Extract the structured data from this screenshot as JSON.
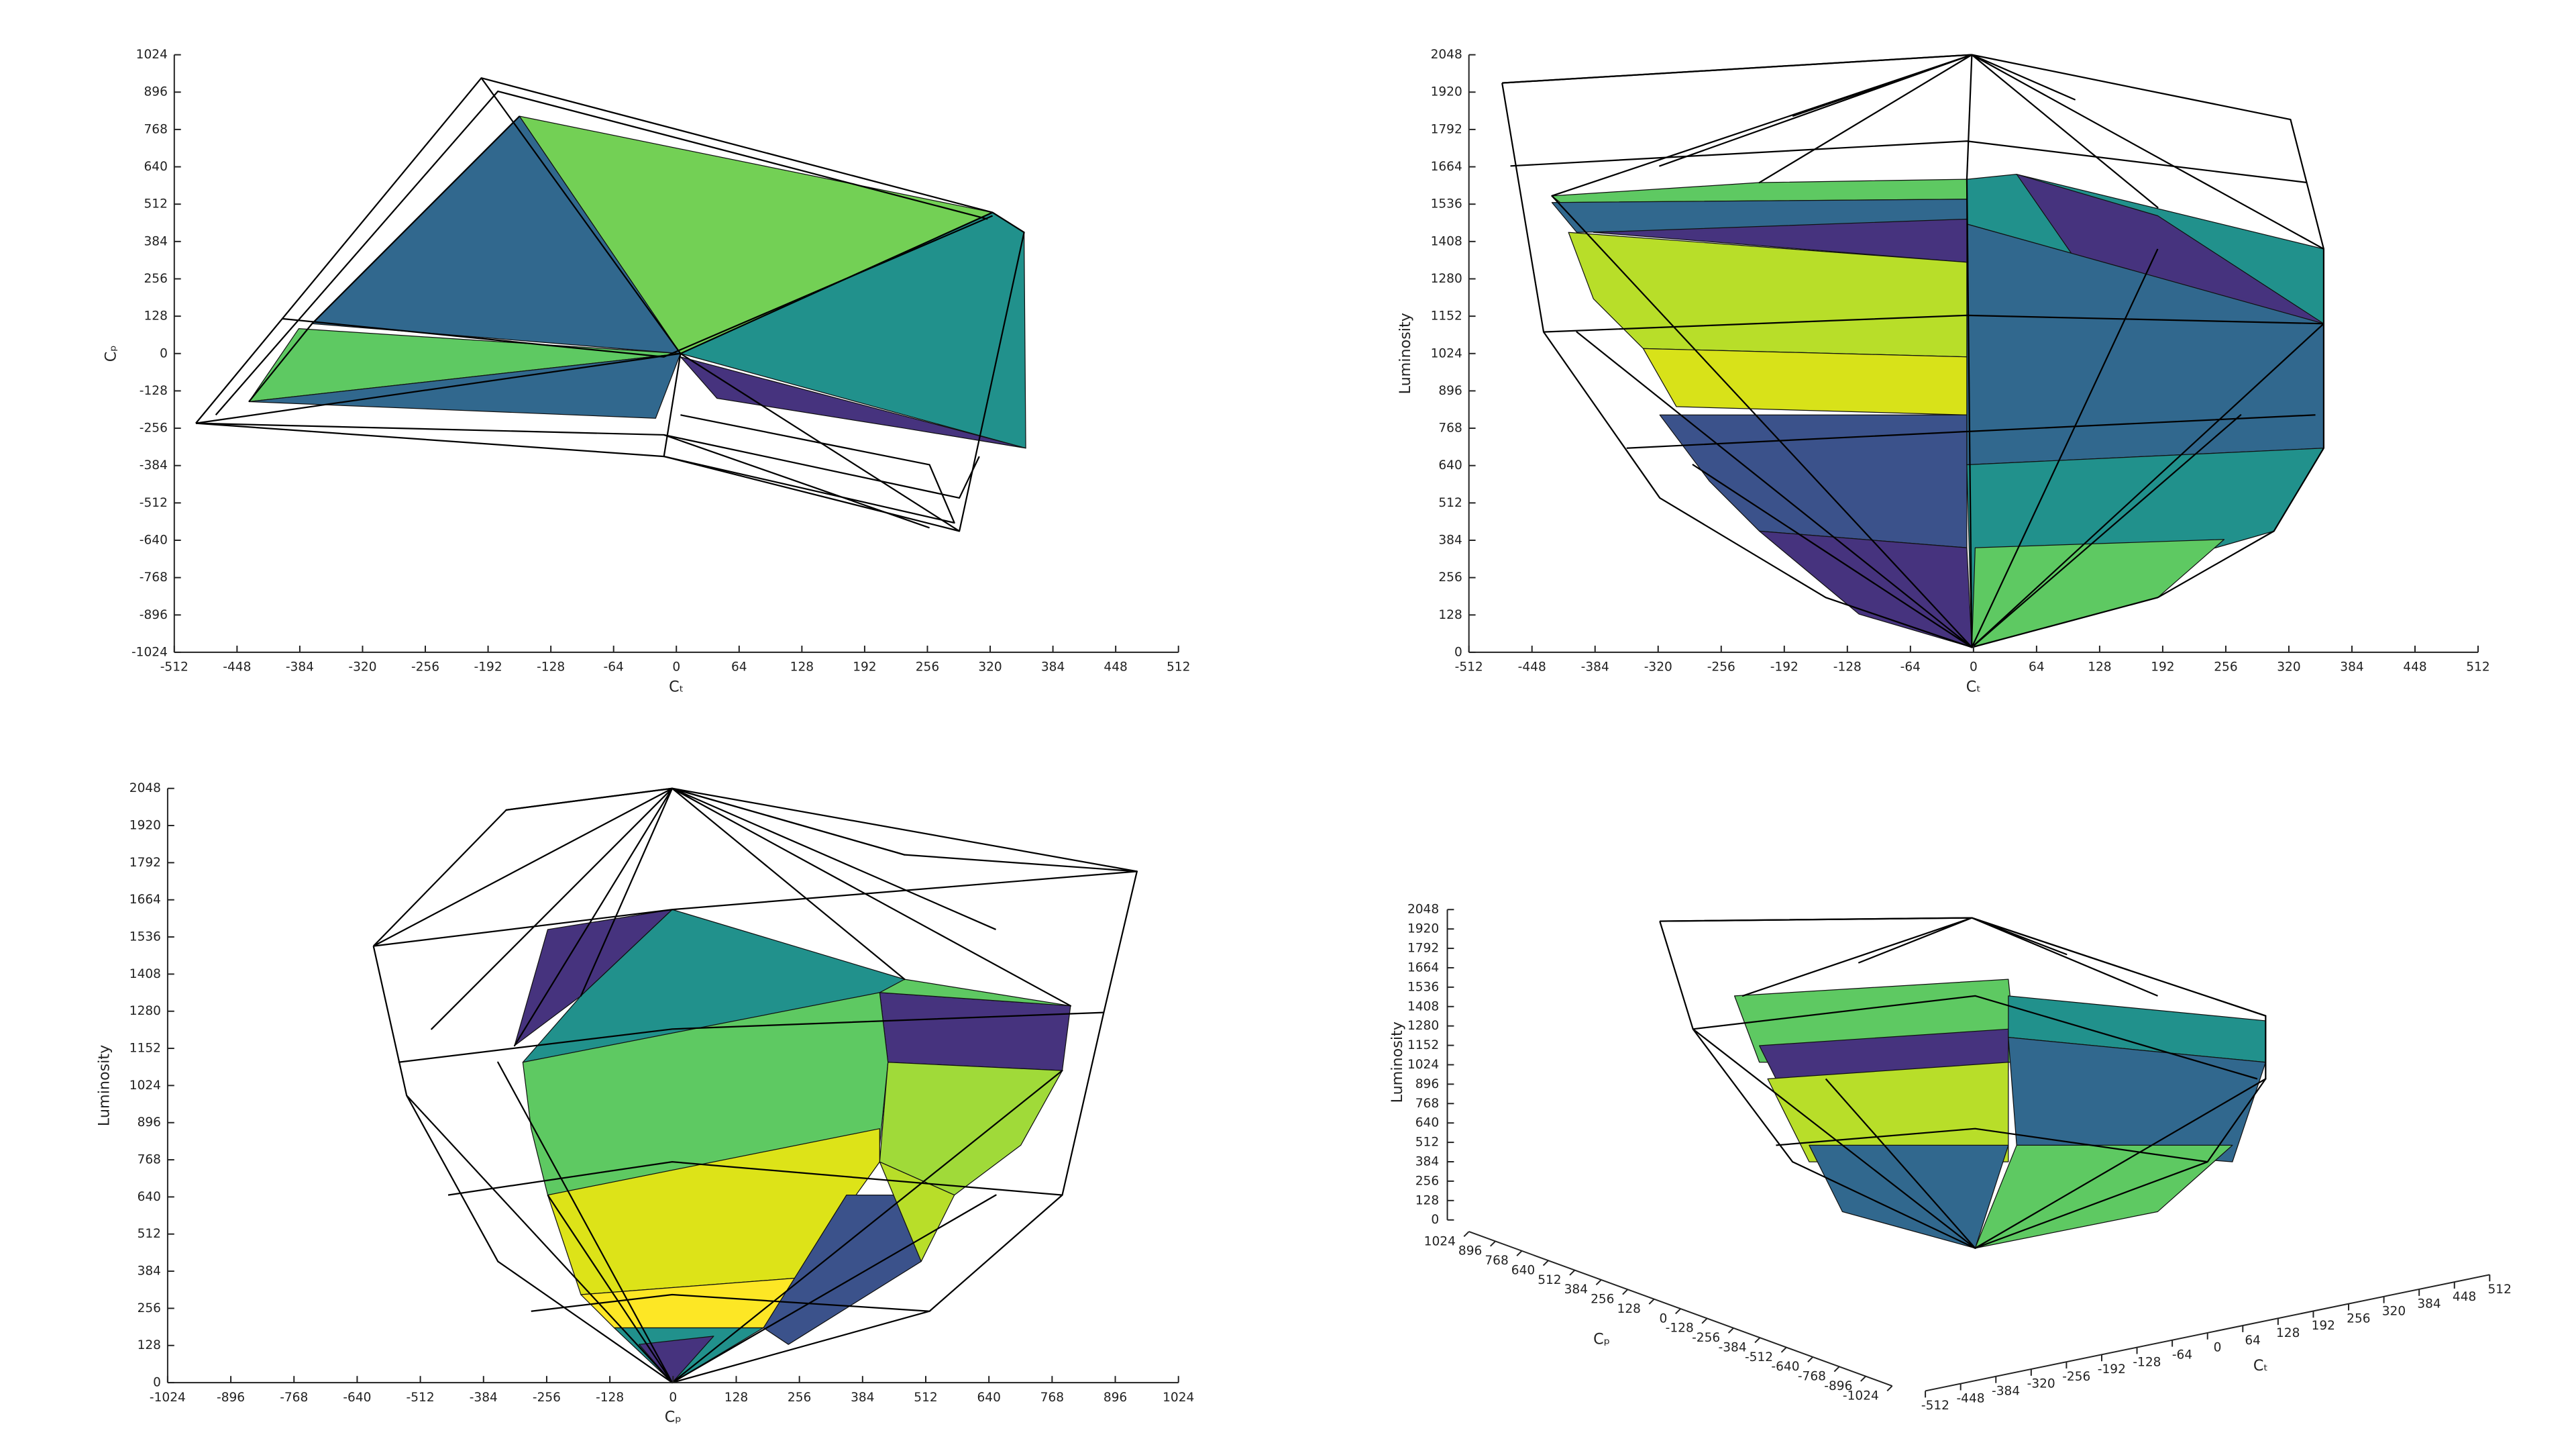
{
  "chart_data": [
    {
      "type": "mesh",
      "xlabel": "Cₜ",
      "ylabel": "Cₚ",
      "xlim": [
        -512,
        512
      ],
      "xticks": [
        -512,
        -448,
        -384,
        -320,
        -256,
        -192,
        -128,
        -64,
        0,
        64,
        128,
        192,
        256,
        320,
        384,
        448,
        512
      ],
      "ylim": [
        -1024,
        1024
      ],
      "yticks": [
        -1024,
        -896,
        -768,
        -640,
        -512,
        -384,
        -256,
        -128,
        0,
        128,
        256,
        384,
        512,
        640,
        768,
        896,
        1024
      ]
    },
    {
      "type": "mesh",
      "xlabel": "Cₜ",
      "ylabel": "Luminosity",
      "xlim": [
        -512,
        512
      ],
      "xticks": [
        -512,
        -448,
        -384,
        -320,
        -256,
        -192,
        -128,
        -64,
        0,
        64,
        128,
        192,
        256,
        320,
        384,
        448,
        512
      ],
      "ylim": [
        0,
        2048
      ],
      "yticks": [
        0,
        128,
        256,
        384,
        512,
        640,
        768,
        896,
        1024,
        1152,
        1280,
        1408,
        1536,
        1664,
        1792,
        1920,
        2048
      ]
    },
    {
      "type": "mesh",
      "xlabel": "Cₚ",
      "ylabel": "Luminosity",
      "xlim": [
        -1024,
        1024
      ],
      "xticks": [
        -1024,
        -896,
        -768,
        -640,
        -512,
        -384,
        -256,
        -128,
        0,
        128,
        256,
        384,
        512,
        640,
        768,
        896,
        1024
      ],
      "ylim": [
        0,
        2048
      ],
      "yticks": [
        0,
        128,
        256,
        384,
        512,
        640,
        768,
        896,
        1024,
        1152,
        1280,
        1408,
        1536,
        1664,
        1792,
        1920,
        2048
      ]
    },
    {
      "type": "mesh3d",
      "xlabel": "Cₜ",
      "ylabel": "Cₚ",
      "zlabel": "Luminosity",
      "xlim": [
        -512,
        512
      ],
      "xticks": [
        -512,
        -448,
        -384,
        -320,
        -256,
        -192,
        -128,
        -64,
        0,
        64,
        128,
        192,
        256,
        320,
        384,
        448,
        512
      ],
      "ylim": [
        -1024,
        1024
      ],
      "yticks": [
        -1024,
        -896,
        -768,
        -640,
        -512,
        -384,
        -256,
        -128,
        0,
        128,
        256,
        384,
        512,
        640,
        768,
        896,
        1024
      ],
      "zlim": [
        0,
        2048
      ],
      "zticks": [
        0,
        128,
        256,
        384,
        512,
        640,
        768,
        896,
        1024,
        1152,
        1280,
        1408,
        1536,
        1664,
        1792,
        1920,
        2048
      ]
    }
  ]
}
